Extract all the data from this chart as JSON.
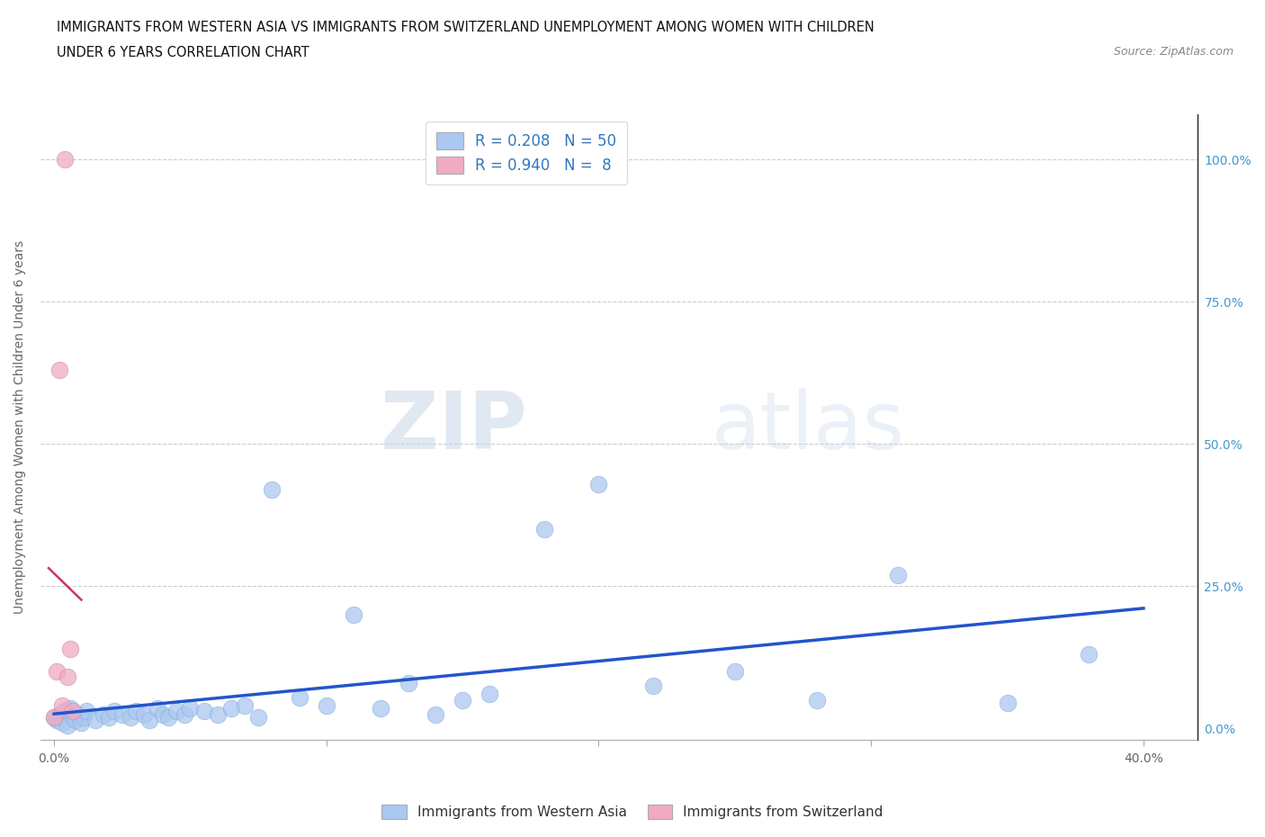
{
  "title_line1": "IMMIGRANTS FROM WESTERN ASIA VS IMMIGRANTS FROM SWITZERLAND UNEMPLOYMENT AMONG WOMEN WITH CHILDREN",
  "title_line2": "UNDER 6 YEARS CORRELATION CHART",
  "source": "Source: ZipAtlas.com",
  "ylabel": "Unemployment Among Women with Children Under 6 years",
  "xlabel_ticks": [
    "0.0%",
    "",
    "",
    "",
    "40.0%"
  ],
  "xlabel_vals": [
    0.0,
    0.1,
    0.2,
    0.3,
    0.4
  ],
  "ylabel_ticks_right": [
    "100.0%",
    "75.0%",
    "50.0%",
    "25.0%",
    "0.0%"
  ],
  "ylabel_vals": [
    1.0,
    0.75,
    0.5,
    0.25,
    0.0
  ],
  "xlim": [
    -0.005,
    0.42
  ],
  "ylim": [
    -0.02,
    1.08
  ],
  "R_blue": 0.208,
  "N_blue": 50,
  "R_pink": 0.94,
  "N_pink": 8,
  "legend_label_blue": "Immigrants from Western Asia",
  "legend_label_pink": "Immigrants from Switzerland",
  "blue_color": "#aac8f0",
  "pink_color": "#f0aac4",
  "blue_line_color": "#2255cc",
  "pink_line_color": "#cc3366",
  "right_tick_color": "#4499cc",
  "legend_text_color": "#3377bb",
  "watermark_zip": "ZIP",
  "watermark_atlas": "atlas",
  "blue_x": [
    0.0,
    0.001,
    0.002,
    0.003,
    0.004,
    0.005,
    0.006,
    0.007,
    0.008,
    0.009,
    0.01,
    0.011,
    0.012,
    0.015,
    0.018,
    0.02,
    0.022,
    0.025,
    0.028,
    0.03,
    0.033,
    0.035,
    0.038,
    0.04,
    0.042,
    0.045,
    0.048,
    0.05,
    0.055,
    0.06,
    0.065,
    0.07,
    0.075,
    0.08,
    0.09,
    0.1,
    0.11,
    0.12,
    0.13,
    0.14,
    0.15,
    0.16,
    0.18,
    0.2,
    0.22,
    0.25,
    0.28,
    0.31,
    0.35,
    0.38
  ],
  "blue_y": [
    0.02,
    0.015,
    0.025,
    0.01,
    0.03,
    0.005,
    0.035,
    0.02,
    0.015,
    0.025,
    0.01,
    0.02,
    0.03,
    0.015,
    0.025,
    0.02,
    0.03,
    0.025,
    0.02,
    0.03,
    0.025,
    0.015,
    0.035,
    0.025,
    0.02,
    0.03,
    0.025,
    0.035,
    0.03,
    0.025,
    0.035,
    0.04,
    0.02,
    0.42,
    0.055,
    0.04,
    0.2,
    0.035,
    0.08,
    0.025,
    0.05,
    0.06,
    0.35,
    0.43,
    0.075,
    0.1,
    0.05,
    0.27,
    0.045,
    0.13
  ],
  "pink_x": [
    0.0,
    0.001,
    0.002,
    0.003,
    0.004,
    0.005,
    0.006,
    0.007
  ],
  "pink_y": [
    0.02,
    0.1,
    0.63,
    0.04,
    1.0,
    0.09,
    0.14,
    0.03
  ]
}
